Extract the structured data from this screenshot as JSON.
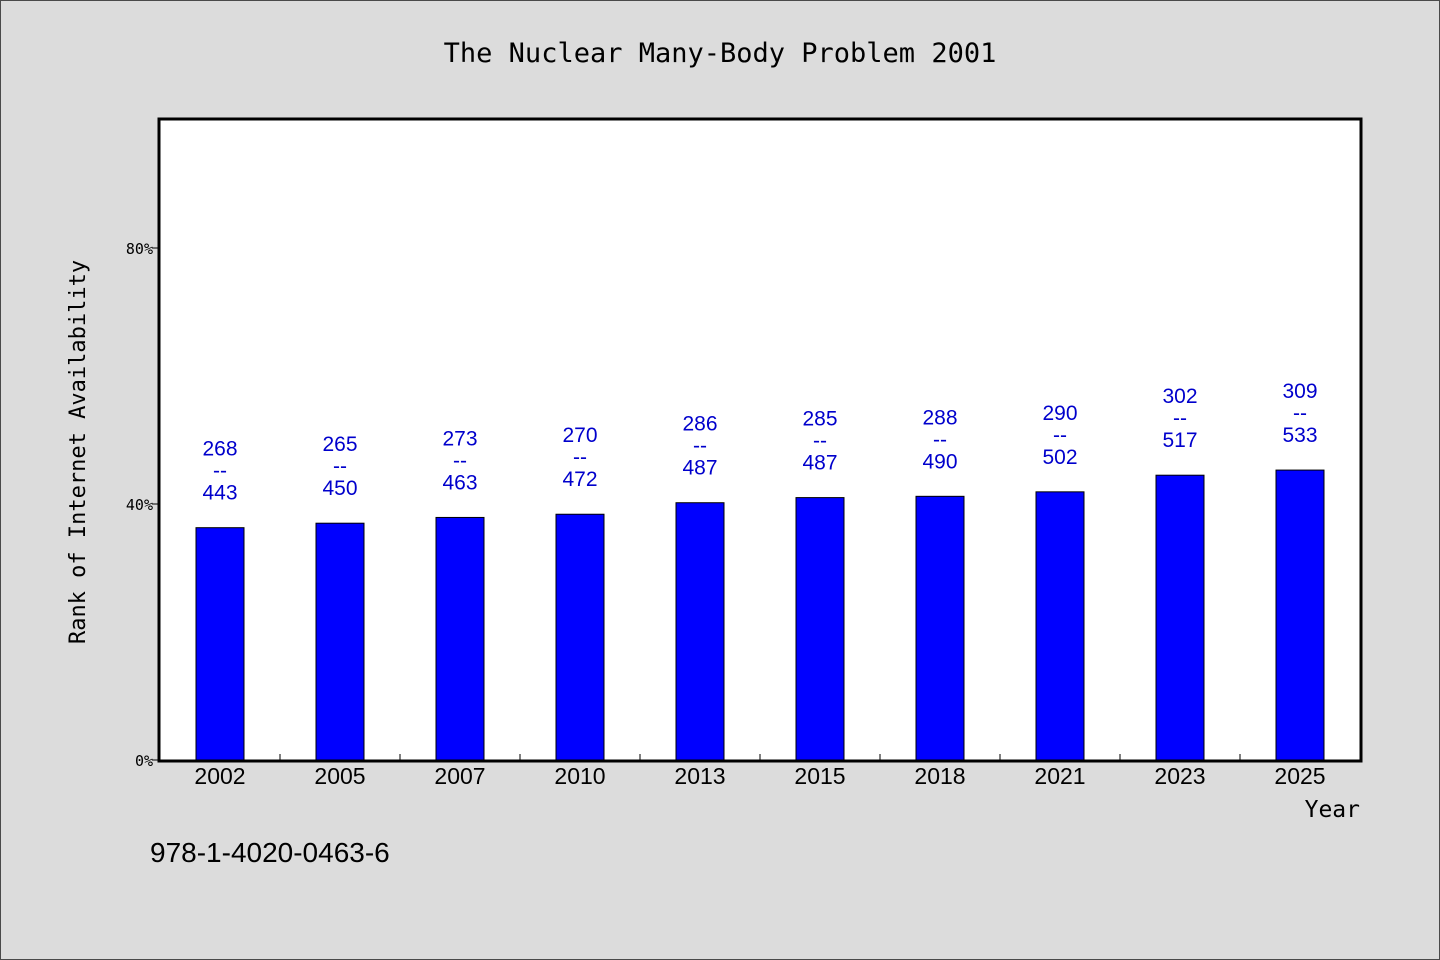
{
  "chart_data": {
    "type": "bar",
    "title": "The Nuclear Many-Body Problem 2001",
    "xlabel": "Year",
    "ylabel": "Rank of Internet Availability",
    "footer": "978-1-4020-0463-6",
    "categories": [
      "2002",
      "2005",
      "2007",
      "2010",
      "2013",
      "2015",
      "2018",
      "2021",
      "2023",
      "2025"
    ],
    "values": [
      36.3,
      37.0,
      37.9,
      38.4,
      40.2,
      41.0,
      41.2,
      41.9,
      44.5,
      45.3
    ],
    "data_labels_top": [
      "268",
      "265",
      "273",
      "270",
      "286",
      "285",
      "288",
      "290",
      "302",
      "309"
    ],
    "data_labels_bottom": [
      "443",
      "450",
      "463",
      "472",
      "487",
      "487",
      "490",
      "502",
      "517",
      "533"
    ],
    "label_separator": "--",
    "y_ticks": [
      "0%",
      "40%",
      "80%"
    ],
    "y_tick_values": [
      0,
      40,
      80
    ],
    "ylim": [
      0,
      100
    ],
    "bar_color": "#0000ff",
    "label_color": "#0000cc",
    "grid": false
  }
}
